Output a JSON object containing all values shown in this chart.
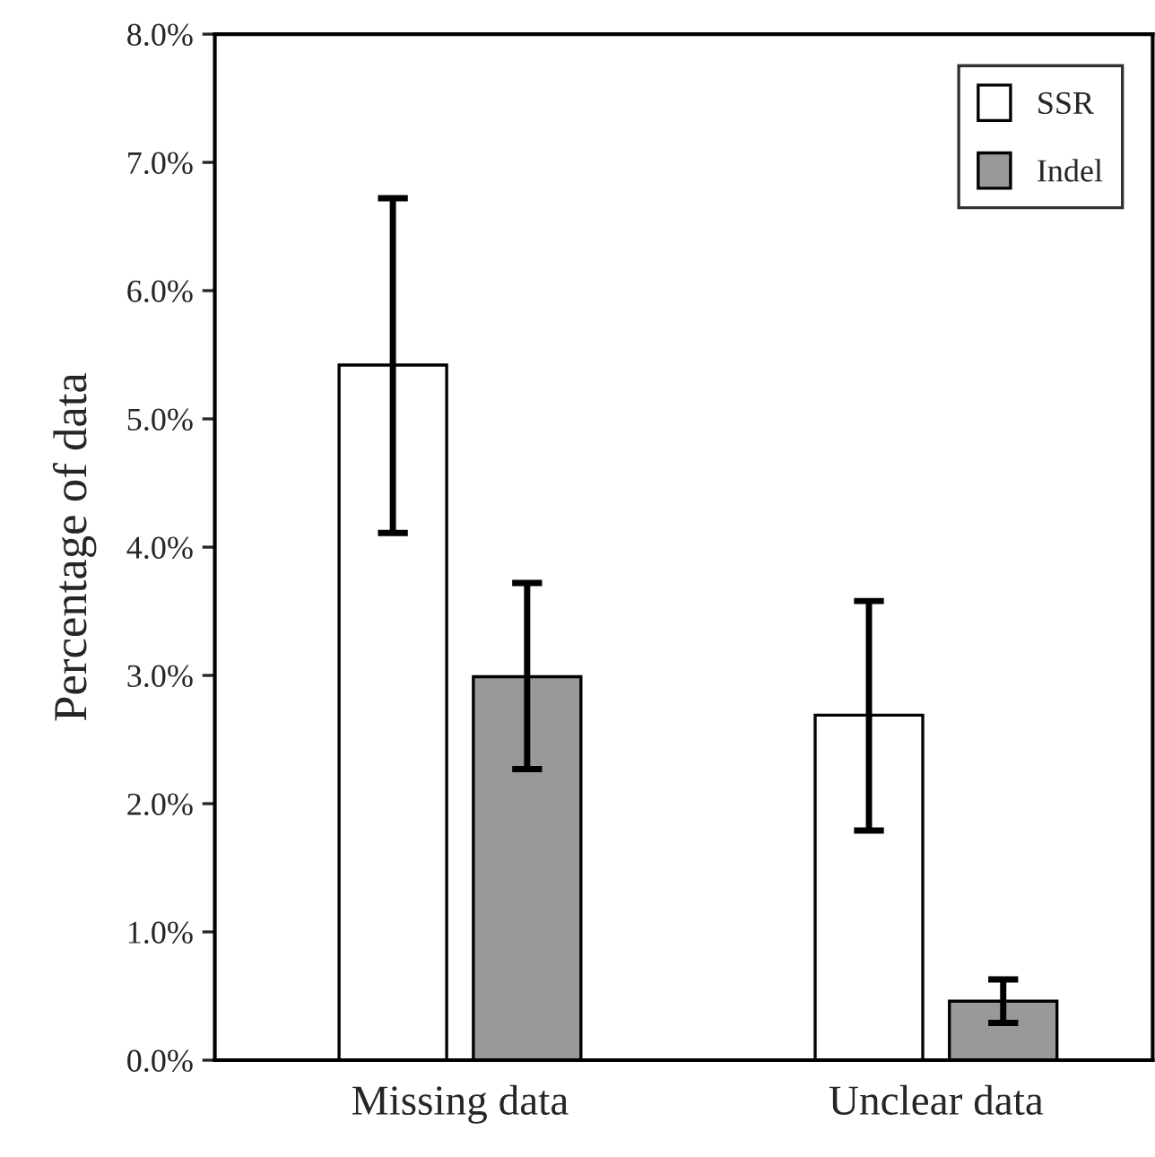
{
  "chart_data": {
    "type": "bar",
    "ylabel": "Percentage of data",
    "categories": [
      "Missing data",
      "Unclear data"
    ],
    "series": [
      {
        "name": "SSR",
        "color": "#ffffff",
        "values": [
          5.42,
          2.69
        ],
        "errors": [
          [
            4.11,
            6.72
          ],
          [
            1.79,
            3.58
          ]
        ]
      },
      {
        "name": "Indel",
        "color": "#999999",
        "values": [
          2.99,
          0.46
        ],
        "errors": [
          [
            2.27,
            3.72
          ],
          [
            0.29,
            0.63
          ]
        ]
      }
    ],
    "ylim": [
      0,
      8
    ],
    "yticks": [
      {
        "value": 0,
        "label": "0.0%"
      },
      {
        "value": 1,
        "label": "1.0%"
      },
      {
        "value": 2,
        "label": "2.0%"
      },
      {
        "value": 3,
        "label": "3.0%"
      },
      {
        "value": 4,
        "label": "4.0%"
      },
      {
        "value": 5,
        "label": "5.0%"
      },
      {
        "value": 6,
        "label": "6.0%"
      },
      {
        "value": 7,
        "label": "7.0%"
      },
      {
        "value": 8,
        "label": "8.0%"
      }
    ],
    "grid": false,
    "legend": "top right"
  }
}
